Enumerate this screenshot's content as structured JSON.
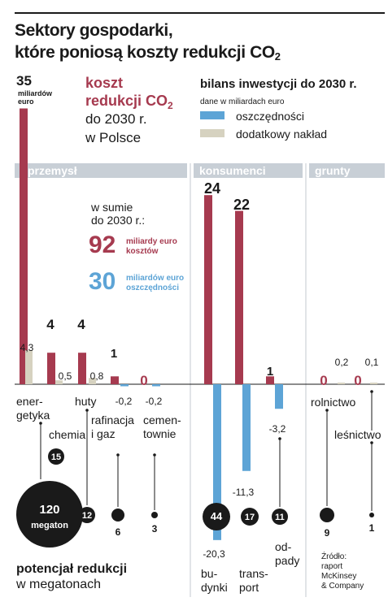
{
  "title": {
    "line1": "Sektory gospodarki,",
    "line2_main": "które poniosą koszty redukcji CO",
    "line2_sub": "2"
  },
  "cost_header": {
    "line1": "koszt",
    "line2_main": "redukcji CO",
    "line2_sub": "2",
    "line3": "do 2030 r.",
    "line4": "w Polsce"
  },
  "energy_cost_label": {
    "value": "35",
    "line1": "miliardów",
    "line2": "euro"
  },
  "balance_legend": {
    "title": "bilans inwestycji do 2030 r.",
    "subtitle": "dane w miliardach euro",
    "items": [
      {
        "label": "oszczędności",
        "color": "#5da4d6"
      },
      {
        "label": "dodatkowy nakład",
        "color": "#d6d2c0"
      }
    ]
  },
  "sectors": [
    {
      "label": "przemysł"
    },
    {
      "label": "konsumenci"
    },
    {
      "label": "grunty"
    }
  ],
  "summary": {
    "intro_line1": "w sumie",
    "intro_line2": "do 2030 r.:",
    "cost_value": "92",
    "cost_line1": "miliardy euro",
    "cost_line2": "kosztów",
    "savings_value": "30",
    "savings_line1": "miliardów euro",
    "savings_line2": "oszczędności"
  },
  "chart_data": {
    "type": "bar",
    "categories": [
      [
        "ener-",
        "getyka"
      ],
      [
        "chemia"
      ],
      [
        "huty"
      ],
      [
        "rafinacja",
        "i gaz"
      ],
      [
        "cemen-",
        "townie"
      ],
      [
        "bu-",
        "dynki"
      ],
      [
        "trans-",
        "port"
      ],
      [
        "od-",
        "pady"
      ],
      [
        "rolnictwo"
      ],
      [
        "leśnictwo"
      ]
    ],
    "series": [
      {
        "name": "koszt redukcji CO2",
        "color": "#a63a4f",
        "values": [
          35,
          4,
          4,
          1,
          0,
          24,
          22,
          1,
          0,
          0
        ],
        "labels": [
          "",
          "4",
          "4",
          "1",
          "0",
          "24",
          "22",
          "1",
          "0",
          "0"
        ]
      },
      {
        "name": "dodatkowy nakład",
        "color": "#d6d2c0",
        "values": [
          4.3,
          0.5,
          0.8,
          0,
          0,
          0,
          0,
          0,
          0.2,
          0.1
        ],
        "labels": [
          "4,3",
          "0,5",
          "0,8",
          "",
          "",
          "",
          "",
          "",
          "0,2",
          "0,1"
        ]
      },
      {
        "name": "oszczędności",
        "color": "#5da4d6",
        "values": [
          0,
          0,
          0,
          -0.2,
          -0.2,
          -20.3,
          -11.3,
          -3.2,
          0,
          0
        ],
        "labels": [
          "",
          "",
          "",
          "-0,2",
          "-0,2",
          "-20,3",
          "-11,3",
          "-3,2",
          "",
          ""
        ]
      }
    ],
    "reduction_potential": {
      "label_line1": "potencjał redukcji",
      "label_line2": "w megatonach",
      "values": [
        120,
        15,
        12,
        6,
        3,
        44,
        17,
        11,
        9,
        1
      ],
      "labels": [
        "120",
        "15",
        "12",
        "6",
        "3",
        "44",
        "17",
        "11",
        "9",
        "1"
      ],
      "unit": "megaton"
    },
    "grid": false
  },
  "source": {
    "line1": "Źródło:",
    "line2": "raport",
    "line3": "McKinsey",
    "line4": "& Company"
  },
  "colors": {
    "cost": "#a63a4f",
    "savings": "#5da4d6",
    "extra": "#d6d2c0",
    "band": "#c8cfd6",
    "dark": "#1a1a1a"
  }
}
